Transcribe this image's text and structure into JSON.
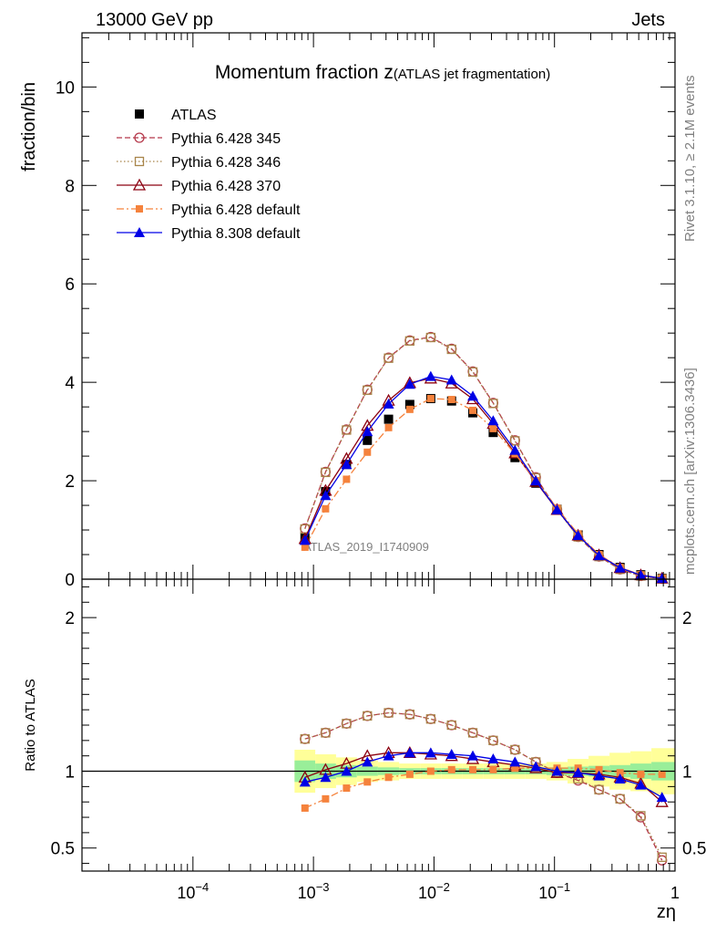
{
  "header": {
    "left": "13000 GeV pp",
    "right": "Jets"
  },
  "title": {
    "main": "Momentum fraction z",
    "sub": "(ATLAS jet fragmentation)"
  },
  "side_labels": {
    "top": "Rivet 3.1.10, ≥ 2.1M events",
    "bottom": "mcplots.cern.ch [arXiv:1306.3436]"
  },
  "watermark": "ATLAS_2019_I1740909",
  "chart_data": [
    {
      "type": "scatter",
      "panel": "main",
      "ylabel": "fraction/bin",
      "xlabel": "zη",
      "x_scale": "log",
      "xlim": [
        1.2e-05,
        1.0
      ],
      "ylim": [
        0,
        11.1
      ],
      "y_ticks": [
        {
          "v": 0,
          "l": "0"
        },
        {
          "v": 2,
          "l": "2"
        },
        {
          "v": 4,
          "l": "4"
        },
        {
          "v": 6,
          "l": "6"
        },
        {
          "v": 8,
          "l": "8"
        },
        {
          "v": 10,
          "l": "10"
        }
      ],
      "x_ticks": [
        {
          "v": 0.0001,
          "b": "10",
          "e": "−4"
        },
        {
          "v": 0.001,
          "b": "10",
          "e": "−3"
        },
        {
          "v": 0.01,
          "b": "10",
          "e": "−2"
        },
        {
          "v": 0.1,
          "b": "10",
          "e": "−1"
        },
        {
          "v": 1,
          "b": "1",
          "e": ""
        }
      ],
      "x": [
        0.00085,
        0.00126,
        0.00188,
        0.0028,
        0.0042,
        0.0063,
        0.0094,
        0.014,
        0.021,
        0.031,
        0.047,
        0.07,
        0.105,
        0.157,
        0.234,
        0.35,
        0.52,
        0.78
      ],
      "series": [
        {
          "name": "ATLAS",
          "color": "#000000",
          "marker": "square-filled",
          "line": "none",
          "values": [
            0.85,
            1.78,
            2.33,
            2.82,
            3.25,
            3.55,
            3.67,
            3.62,
            3.38,
            2.98,
            2.47,
            1.95,
            1.42,
            0.9,
            0.5,
            0.24,
            0.09,
            0.02
          ]
        },
        {
          "name": "Pythia 6.428 345",
          "color": "#b5384a",
          "marker": "circle-open",
          "line": "dashed",
          "values": [
            1.03,
            2.18,
            3.04,
            3.85,
            4.5,
            4.85,
            4.92,
            4.68,
            4.22,
            3.58,
            2.82,
            2.07,
            1.42,
            0.86,
            0.46,
            0.2,
            0.065,
            0.0085
          ]
        },
        {
          "name": "Pythia 6.428 346",
          "color": "#a8854a",
          "marker": "square-open",
          "line": "dotted",
          "values": [
            1.02,
            2.17,
            3.03,
            3.84,
            4.49,
            4.84,
            4.91,
            4.67,
            4.21,
            3.57,
            2.81,
            2.06,
            1.41,
            0.86,
            0.46,
            0.2,
            0.066,
            0.009
          ]
        },
        {
          "name": "Pythia 6.428 370",
          "color": "#8c0010",
          "marker": "triangle-open",
          "line": "solid",
          "values": [
            0.82,
            1.8,
            2.45,
            3.12,
            3.63,
            3.99,
            4.08,
            3.98,
            3.66,
            3.16,
            2.56,
            1.98,
            1.41,
            0.89,
            0.49,
            0.23,
            0.083,
            0.016
          ]
        },
        {
          "name": "Pythia 6.428 default",
          "color": "#f5823c",
          "marker": "square-filled-small",
          "line": "dashdot",
          "values": [
            0.65,
            1.43,
            2.03,
            2.58,
            3.08,
            3.45,
            3.67,
            3.65,
            3.43,
            3.06,
            2.55,
            2.0,
            1.44,
            0.92,
            0.5,
            0.24,
            0.088,
            0.02
          ]
        },
        {
          "name": "Pythia 8.308 default",
          "color": "#0000e6",
          "marker": "triangle-filled",
          "line": "solid",
          "values": [
            0.79,
            1.7,
            2.33,
            3.0,
            3.56,
            3.96,
            4.12,
            4.05,
            3.72,
            3.22,
            2.62,
            2.0,
            1.41,
            0.89,
            0.48,
            0.23,
            0.082,
            0.017
          ]
        }
      ]
    },
    {
      "type": "scatter",
      "panel": "ratio",
      "ylabel": "Ratio to ATLAS",
      "x_scale": "log",
      "xlim": [
        1.2e-05,
        1.0
      ],
      "ylim": [
        0.35,
        2.25
      ],
      "y_ticks": [
        {
          "v": 0.5,
          "l": "0.5"
        },
        {
          "v": 1,
          "l": "1"
        },
        {
          "v": 2,
          "l": "2"
        }
      ],
      "x": [
        0.00085,
        0.00126,
        0.00188,
        0.0028,
        0.0042,
        0.0063,
        0.0094,
        0.014,
        0.021,
        0.031,
        0.047,
        0.07,
        0.105,
        0.157,
        0.234,
        0.35,
        0.52,
        0.78
      ],
      "band_outer": [
        0.14,
        0.11,
        0.09,
        0.07,
        0.06,
        0.05,
        0.05,
        0.05,
        0.05,
        0.05,
        0.05,
        0.05,
        0.06,
        0.08,
        0.1,
        0.12,
        0.13,
        0.15
      ],
      "band_inner": [
        0.07,
        0.05,
        0.04,
        0.03,
        0.025,
        0.02,
        0.02,
        0.02,
        0.02,
        0.02,
        0.02,
        0.02,
        0.025,
        0.03,
        0.035,
        0.04,
        0.05,
        0.06
      ],
      "band_outer_color": "#ffff99",
      "band_inner_color": "#99ee99",
      "series": [
        {
          "name": "Pythia 6.428 345",
          "color": "#b5384a",
          "marker": "circle-open",
          "line": "dashed",
          "values": [
            1.21,
            1.25,
            1.31,
            1.36,
            1.38,
            1.37,
            1.34,
            1.3,
            1.25,
            1.2,
            1.14,
            1.06,
            0.99,
            0.94,
            0.88,
            0.82,
            0.7,
            0.42
          ]
        },
        {
          "name": "Pythia 6.428 346",
          "color": "#a8854a",
          "marker": "square-open",
          "line": "dotted",
          "values": [
            1.21,
            1.25,
            1.31,
            1.36,
            1.38,
            1.37,
            1.34,
            1.3,
            1.25,
            1.2,
            1.14,
            1.06,
            0.99,
            0.95,
            0.88,
            0.82,
            0.71,
            0.44
          ]
        },
        {
          "name": "Pythia 6.428 370",
          "color": "#8c0010",
          "marker": "triangle-open",
          "line": "solid",
          "values": [
            0.96,
            1.01,
            1.05,
            1.1,
            1.12,
            1.12,
            1.11,
            1.1,
            1.08,
            1.06,
            1.04,
            1.02,
            0.99,
            0.99,
            0.98,
            0.96,
            0.92,
            0.8
          ]
        },
        {
          "name": "Pythia 6.428 default",
          "color": "#f5823c",
          "marker": "square-filled-small",
          "line": "dashdot",
          "values": [
            0.76,
            0.82,
            0.89,
            0.93,
            0.96,
            0.98,
            1.0,
            1.01,
            1.01,
            1.01,
            1.02,
            1.02,
            1.02,
            1.02,
            1.01,
            0.99,
            0.98,
            0.98
          ]
        },
        {
          "name": "Pythia 8.308 default",
          "color": "#0000e6",
          "marker": "triangle-filled",
          "line": "solid",
          "values": [
            0.93,
            0.96,
            1.0,
            1.06,
            1.1,
            1.12,
            1.12,
            1.11,
            1.1,
            1.08,
            1.06,
            1.03,
            1.0,
            0.99,
            0.97,
            0.95,
            0.91,
            0.83
          ]
        }
      ]
    }
  ]
}
